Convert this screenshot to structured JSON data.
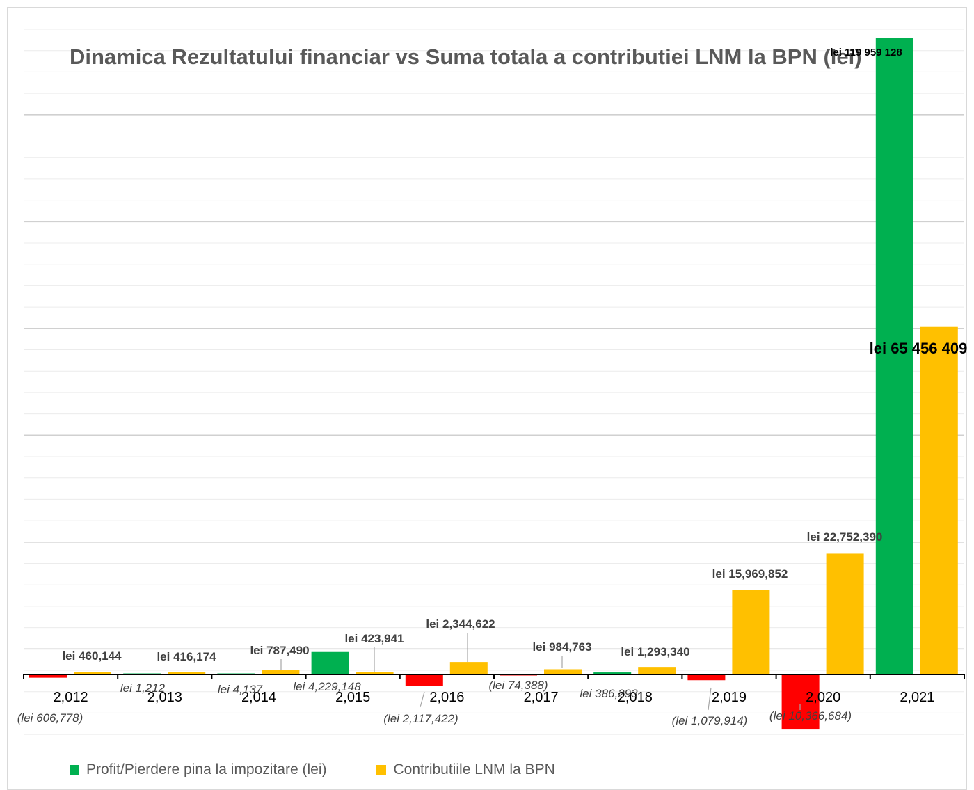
{
  "chart_data": {
    "type": "bar",
    "title": "Dinamica Rezultatului financiar vs  Suma totala a contributiei LNM la BPN (lei)",
    "xlabel": "",
    "ylabel": "",
    "categories": [
      "2,012",
      "2,013",
      "2,014",
      "2,015",
      "2,016",
      "2,017",
      "2,018",
      "2,019",
      "2,020",
      "2,021"
    ],
    "ylim": [
      -25000000,
      120000000
    ],
    "grid": true,
    "legend_position": "bottom-left",
    "series": [
      {
        "name": "Profit/Pierdere pina la impozitare (lei)",
        "color": "#00b050",
        "negative_color": "#ff0000",
        "values": [
          -606778,
          1212,
          4137,
          4229148,
          -2117422,
          -74388,
          386293,
          -1079914,
          -10366684,
          119959128
        ],
        "labels": [
          "(lei 606,778)",
          "lei 1,212",
          "lei 4,137",
          "lei 4,229,148",
          "(lei 2,117,422)",
          "(lei 74,388)",
          "lei 386,293",
          "(lei 1,079,914)",
          "(lei 10,366,684)",
          "lei 119 959 128"
        ]
      },
      {
        "name": "Contributiile LNM  la BPN",
        "color": "#ffc000",
        "values": [
          460144,
          416174,
          787490,
          423941,
          2344622,
          984763,
          1293340,
          15969852,
          22752390,
          65456409
        ],
        "labels": [
          "lei 460,144",
          "lei 416,174",
          "lei 787,490",
          "lei 423,941",
          "lei 2,344,622",
          "lei 984,763",
          "lei 1,293,340",
          "lei 15,969,852",
          "lei 22,752,390",
          "lei 65 456 409"
        ]
      }
    ]
  },
  "legend": {
    "items": [
      {
        "label": "Profit/Pierdere pina la impozitare (lei)",
        "color": "#00b050"
      },
      {
        "label": "Contributiile LNM  la BPN",
        "color": "#ffc000"
      }
    ]
  }
}
